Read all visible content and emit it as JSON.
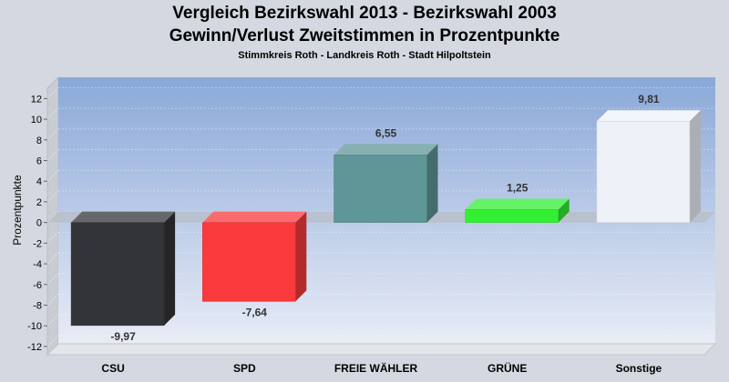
{
  "title_line1": "Vergleich Bezirkswahl 2013 - Bezirkswahl 2003",
  "title_line2": "Gewinn/Verlust Zweitstimmen in Prozentpunkte",
  "subtitle": "Stimmkreis Roth - Landkreis Roth - Stadt Hilpoltstein",
  "chart_data": {
    "type": "bar",
    "title": "Vergleich Bezirkswahl 2013 - Bezirkswahl 2003 / Gewinn/Verlust Zweitstimmen in Prozentpunkte",
    "subtitle": "Stimmkreis Roth - Landkreis Roth - Stadt Hilpoltstein",
    "xlabel": "",
    "ylabel": "Prozentpunkte",
    "ylim": [
      -12.8,
      13.0
    ],
    "yticks": [
      12,
      10,
      8,
      6,
      4,
      2,
      0,
      -2,
      -4,
      -6,
      -8,
      -10,
      -12
    ],
    "categories": [
      "CSU",
      "SPD",
      "FREIE WÄHLER",
      "GRÜNE",
      "Sonstige"
    ],
    "values": [
      -9.97,
      -7.64,
      6.55,
      1.25,
      9.81
    ],
    "value_labels": [
      "-9,97",
      "-7,64",
      "6,55",
      "1,25",
      "9,81"
    ],
    "colors": [
      "#333438",
      "#fa3a3c",
      "#5f9697",
      "#33ee33",
      "#eef2f8"
    ],
    "grid": true,
    "legend": "none"
  }
}
